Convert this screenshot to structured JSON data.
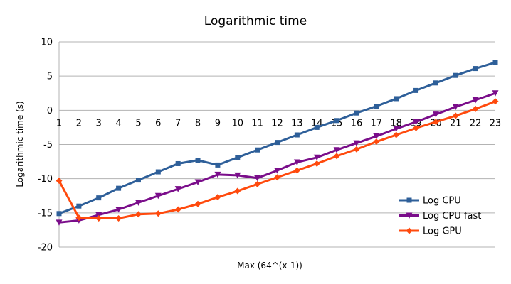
{
  "chart_data": {
    "type": "line",
    "title": "Logarithmic time",
    "xlabel": "Max (64^(x-1))",
    "ylabel": "Logarithmic time (s)",
    "ylim": [
      -20,
      10
    ],
    "yticks": [
      "10",
      "5",
      "0",
      "-5",
      "-10",
      "-15",
      "-20"
    ],
    "grid": true,
    "legend_position": "bottom-right",
    "x": [
      1,
      2,
      3,
      4,
      5,
      6,
      7,
      8,
      9,
      10,
      11,
      12,
      13,
      14,
      15,
      16,
      17,
      18,
      19,
      20,
      21,
      22,
      23
    ],
    "series": [
      {
        "name": "Log CPU",
        "color": "#2e5f99",
        "marker": "square",
        "values": [
          -15.1,
          -14.0,
          -12.8,
          -11.4,
          -10.2,
          -9.0,
          -7.8,
          -7.3,
          -8.0,
          -6.9,
          -5.8,
          -4.7,
          -3.6,
          -2.5,
          -1.5,
          -0.4,
          0.6,
          1.7,
          2.9,
          4.0,
          5.1,
          6.1,
          7.0
        ]
      },
      {
        "name": "Log CPU fast",
        "color": "#7a0d8a",
        "marker": "triangle-down",
        "values": [
          -16.4,
          -16.1,
          -15.3,
          -14.5,
          -13.5,
          -12.5,
          -11.5,
          -10.5,
          -9.4,
          -9.5,
          -9.9,
          -8.8,
          -7.6,
          -6.9,
          -5.8,
          -4.8,
          -3.8,
          -2.7,
          -1.7,
          -0.6,
          0.5,
          1.5,
          2.5
        ]
      },
      {
        "name": "Log GPU",
        "color": "#ff4a0d",
        "marker": "diamond",
        "values": [
          -10.3,
          -15.7,
          -15.8,
          -15.8,
          -15.2,
          -15.1,
          -14.5,
          -13.7,
          -12.7,
          -11.8,
          -10.8,
          -9.8,
          -8.8,
          -7.8,
          -6.7,
          -5.7,
          -4.6,
          -3.6,
          -2.6,
          -1.7,
          -0.8,
          0.2,
          1.3
        ]
      }
    ]
  }
}
